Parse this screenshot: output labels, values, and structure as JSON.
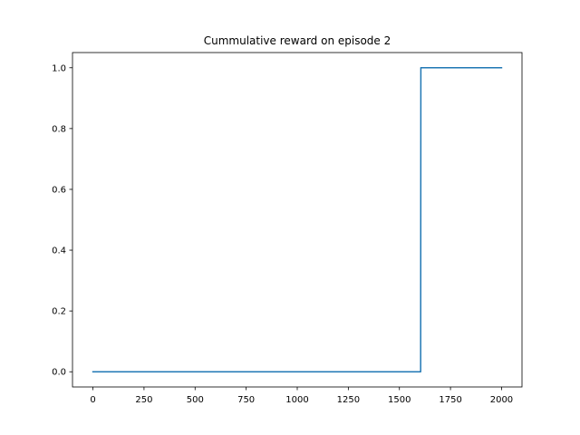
{
  "chart_data": {
    "type": "line",
    "title": "Cummulative reward on episode 2",
    "xlabel": "",
    "ylabel": "",
    "xlim": [
      -100,
      2100
    ],
    "ylim": [
      -0.05,
      1.05
    ],
    "xticks": [
      0,
      250,
      500,
      750,
      1000,
      1250,
      1500,
      1750,
      2000
    ],
    "xtick_labels": [
      "0",
      "250",
      "500",
      "750",
      "1000",
      "1250",
      "1500",
      "1750",
      "2000"
    ],
    "yticks": [
      0.0,
      0.2,
      0.4,
      0.6,
      0.8,
      1.0
    ],
    "ytick_labels": [
      "0.0",
      "0.2",
      "0.4",
      "0.6",
      "0.8",
      "1.0"
    ],
    "grid": false,
    "series": [
      {
        "color": "#1f77b4",
        "x": [
          0,
          1604,
          1605,
          2000
        ],
        "y": [
          0,
          0,
          1,
          1
        ]
      }
    ]
  }
}
